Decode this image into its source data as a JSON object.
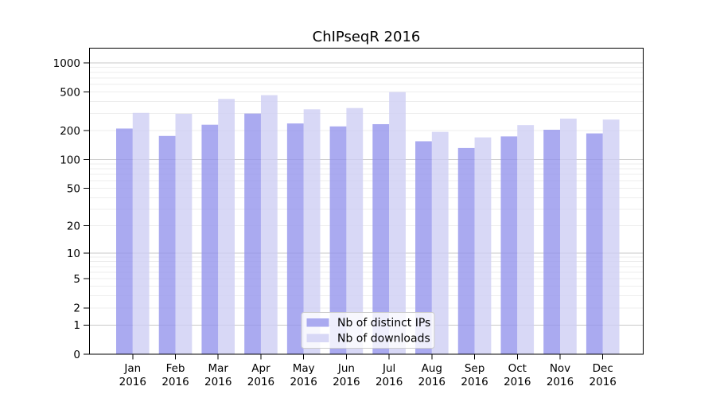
{
  "chart_data": {
    "type": "bar",
    "title": "ChIPseqR 2016",
    "xlabel": "",
    "ylabel": "",
    "categories": [
      "Jan",
      "Feb",
      "Mar",
      "Apr",
      "May",
      "Jun",
      "Jul",
      "Aug",
      "Sep",
      "Oct",
      "Nov",
      "Dec"
    ],
    "x_tick_year": "2016",
    "y_scale": "log(1+x)",
    "y_ticks": [
      0,
      1,
      2,
      5,
      10,
      20,
      50,
      100,
      200,
      500,
      1000
    ],
    "ylim": [
      0,
      1431
    ],
    "grid": true,
    "series": [
      {
        "name": "Nb of distinct IPs",
        "color": "#aaaaf0",
        "values": [
          210,
          176,
          230,
          300,
          237,
          221,
          233,
          155,
          132,
          174,
          204,
          187
        ]
      },
      {
        "name": "Nb of downloads",
        "color": "#d8d8f6",
        "values": [
          305,
          298,
          425,
          465,
          332,
          342,
          500,
          194,
          170,
          228,
          266,
          260
        ]
      }
    ],
    "legend": {
      "position": "inside-bottom-center",
      "entries": [
        "Nb of distinct IPs",
        "Nb of downloads"
      ]
    },
    "colors": {
      "major_grid": "#c9c9c9",
      "minor_grid": "#ededed",
      "axis": "#000000",
      "legend_border": "#cccccc",
      "background": "#ffffff"
    }
  }
}
